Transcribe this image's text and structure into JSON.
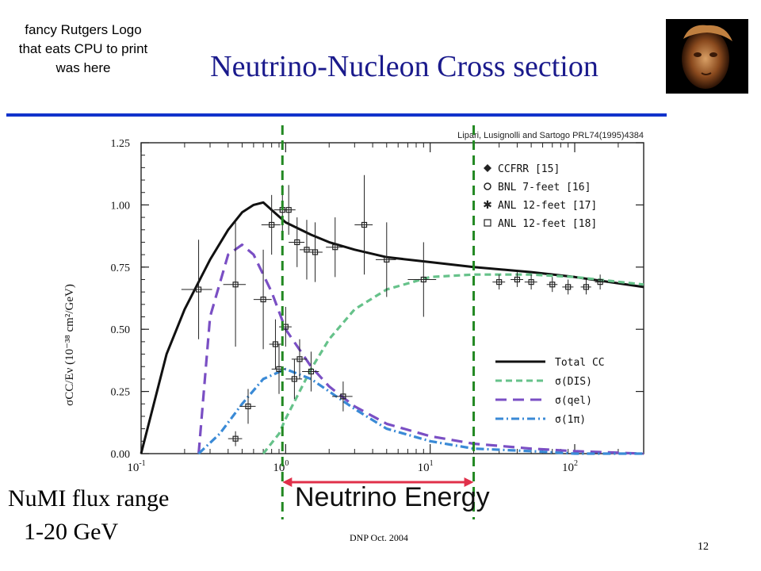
{
  "logo_note": "fancy Rutgers Logo that eats CPU to print was here",
  "slide_title": "Neutrino-Nucleon Cross section",
  "numi_line1": "NuMI flux range",
  "numi_line2": "1-20 GeV",
  "footer": "DNP Oct. 2004",
  "page_number": "12",
  "colors": {
    "title": "#1a1a8c",
    "rule": "#1133cc",
    "green_dashed": "#228822",
    "red_arrow": "#e0304a"
  },
  "chart_data": {
    "type": "line",
    "citation": "Lipari, Lusignolli and Sartogo PRL74(1995)4384",
    "ylabel": "σCC/Eν (10⁻³⁸ cm²/GeV)",
    "xlabel": "Neutrino Energy",
    "x_scale": "log",
    "xlim": [
      0.1,
      300
    ],
    "ylim": [
      0.0,
      1.25
    ],
    "yticks": [
      "0.00",
      "0.25",
      "0.50",
      "0.75",
      "1.00",
      "1.25"
    ],
    "xticks": [
      {
        "base": "10",
        "exp": "-1"
      },
      {
        "base": "10",
        "exp": "0"
      },
      {
        "base": "10",
        "exp": "1"
      },
      {
        "base": "10",
        "exp": "2"
      }
    ],
    "legend_markers": [
      "CCFRR [15]",
      "BNL 7-feet [16]",
      "ANL 12-feet [17]",
      "ANL 12-feet [18]"
    ],
    "legend_lines": [
      "Total CC",
      "σ(DIS)",
      "σ(qel)",
      "σ(1π)"
    ],
    "series": [
      {
        "name": "Total CC",
        "color": "#111111",
        "dash": "solid",
        "x": [
          0.1,
          0.15,
          0.2,
          0.3,
          0.4,
          0.5,
          0.6,
          0.7,
          0.8,
          1,
          1.5,
          2,
          3,
          5,
          10,
          20,
          50,
          100,
          300
        ],
        "y": [
          0,
          0.4,
          0.58,
          0.78,
          0.9,
          0.97,
          1.0,
          1.01,
          0.98,
          0.93,
          0.88,
          0.85,
          0.82,
          0.79,
          0.77,
          0.75,
          0.73,
          0.71,
          0.67
        ]
      },
      {
        "name": "σ(DIS)",
        "color": "#66c28a",
        "dash": "8,5",
        "x": [
          0.7,
          0.9,
          1.0,
          1.5,
          2,
          3,
          5,
          10,
          20,
          50,
          100,
          300
        ],
        "y": [
          0,
          0.08,
          0.14,
          0.34,
          0.46,
          0.58,
          0.66,
          0.71,
          0.72,
          0.72,
          0.71,
          0.68
        ]
      },
      {
        "name": "σ(qel)",
        "color": "#7a4fc4",
        "dash": "14,8",
        "x": [
          0.25,
          0.3,
          0.4,
          0.5,
          0.6,
          0.8,
          1,
          1.5,
          2,
          3,
          5,
          10,
          20,
          50,
          100,
          300
        ],
        "y": [
          0,
          0.55,
          0.8,
          0.84,
          0.8,
          0.65,
          0.5,
          0.35,
          0.27,
          0.19,
          0.12,
          0.07,
          0.04,
          0.02,
          0.01,
          0.0
        ]
      },
      {
        "name": "σ(1π)",
        "color": "#3a8ad6",
        "dash": "10,4,2,4",
        "x": [
          0.25,
          0.35,
          0.5,
          0.7,
          1,
          1.5,
          2,
          3,
          5,
          10,
          20,
          50,
          100,
          300
        ],
        "y": [
          0,
          0.08,
          0.2,
          0.3,
          0.34,
          0.3,
          0.25,
          0.18,
          0.1,
          0.05,
          0.02,
          0.01,
          0.0,
          0.0
        ]
      }
    ],
    "points": [
      {
        "x": 0.25,
        "y": 0.66,
        "xerr": 0.06,
        "yerr": 0.2
      },
      {
        "x": 0.45,
        "y": 0.68,
        "xerr": 0.08,
        "yerr": 0.25
      },
      {
        "x": 0.7,
        "y": 0.62,
        "xerr": 0.1,
        "yerr": 0.2
      },
      {
        "x": 0.8,
        "y": 0.92,
        "xerr": 0.12,
        "yerr": 0.12
      },
      {
        "x": 0.95,
        "y": 0.98,
        "xerr": 0.12,
        "yerr": 0.1
      },
      {
        "x": 1.05,
        "y": 0.98,
        "xerr": 0.12,
        "yerr": 0.1
      },
      {
        "x": 1.2,
        "y": 0.85,
        "xerr": 0.15,
        "yerr": 0.1
      },
      {
        "x": 1.4,
        "y": 0.82,
        "xerr": 0.15,
        "yerr": 0.12
      },
      {
        "x": 1.6,
        "y": 0.81,
        "xerr": 0.2,
        "yerr": 0.12
      },
      {
        "x": 2.2,
        "y": 0.83,
        "xerr": 0.3,
        "yerr": 0.12
      },
      {
        "x": 3.5,
        "y": 0.92,
        "xerr": 0.5,
        "yerr": 0.2
      },
      {
        "x": 5,
        "y": 0.78,
        "xerr": 0.8,
        "yerr": 0.15
      },
      {
        "x": 9,
        "y": 0.7,
        "xerr": 2,
        "yerr": 0.15
      },
      {
        "x": 0.85,
        "y": 0.44,
        "xerr": 0.08,
        "yerr": 0.1
      },
      {
        "x": 1.0,
        "y": 0.51,
        "xerr": 0.1,
        "yerr": 0.08
      },
      {
        "x": 0.9,
        "y": 0.34,
        "xerr": 0.1,
        "yerr": 0.1
      },
      {
        "x": 1.25,
        "y": 0.38,
        "xerr": 0.15,
        "yerr": 0.08
      },
      {
        "x": 1.5,
        "y": 0.33,
        "xerr": 0.2,
        "yerr": 0.08
      },
      {
        "x": 1.15,
        "y": 0.3,
        "xerr": 0.15,
        "yerr": 0.08
      },
      {
        "x": 2.5,
        "y": 0.23,
        "xerr": 0.4,
        "yerr": 0.06
      },
      {
        "x": 0.55,
        "y": 0.19,
        "xerr": 0.07,
        "yerr": 0.07
      },
      {
        "x": 0.45,
        "y": 0.06,
        "xerr": 0.05,
        "yerr": 0.03
      },
      {
        "x": 30,
        "y": 0.69,
        "xerr": 3,
        "yerr": 0.03
      },
      {
        "x": 40,
        "y": 0.7,
        "xerr": 4,
        "yerr": 0.03
      },
      {
        "x": 50,
        "y": 0.69,
        "xerr": 5,
        "yerr": 0.03
      },
      {
        "x": 70,
        "y": 0.68,
        "xerr": 6,
        "yerr": 0.03
      },
      {
        "x": 90,
        "y": 0.67,
        "xerr": 8,
        "yerr": 0.03
      },
      {
        "x": 120,
        "y": 0.67,
        "xerr": 10,
        "yerr": 0.03
      },
      {
        "x": 150,
        "y": 0.69,
        "xerr": 12,
        "yerr": 0.03
      }
    ],
    "vertical_markers_x": [
      0.95,
      20
    ],
    "arrow_range_x": [
      1,
      20
    ]
  }
}
